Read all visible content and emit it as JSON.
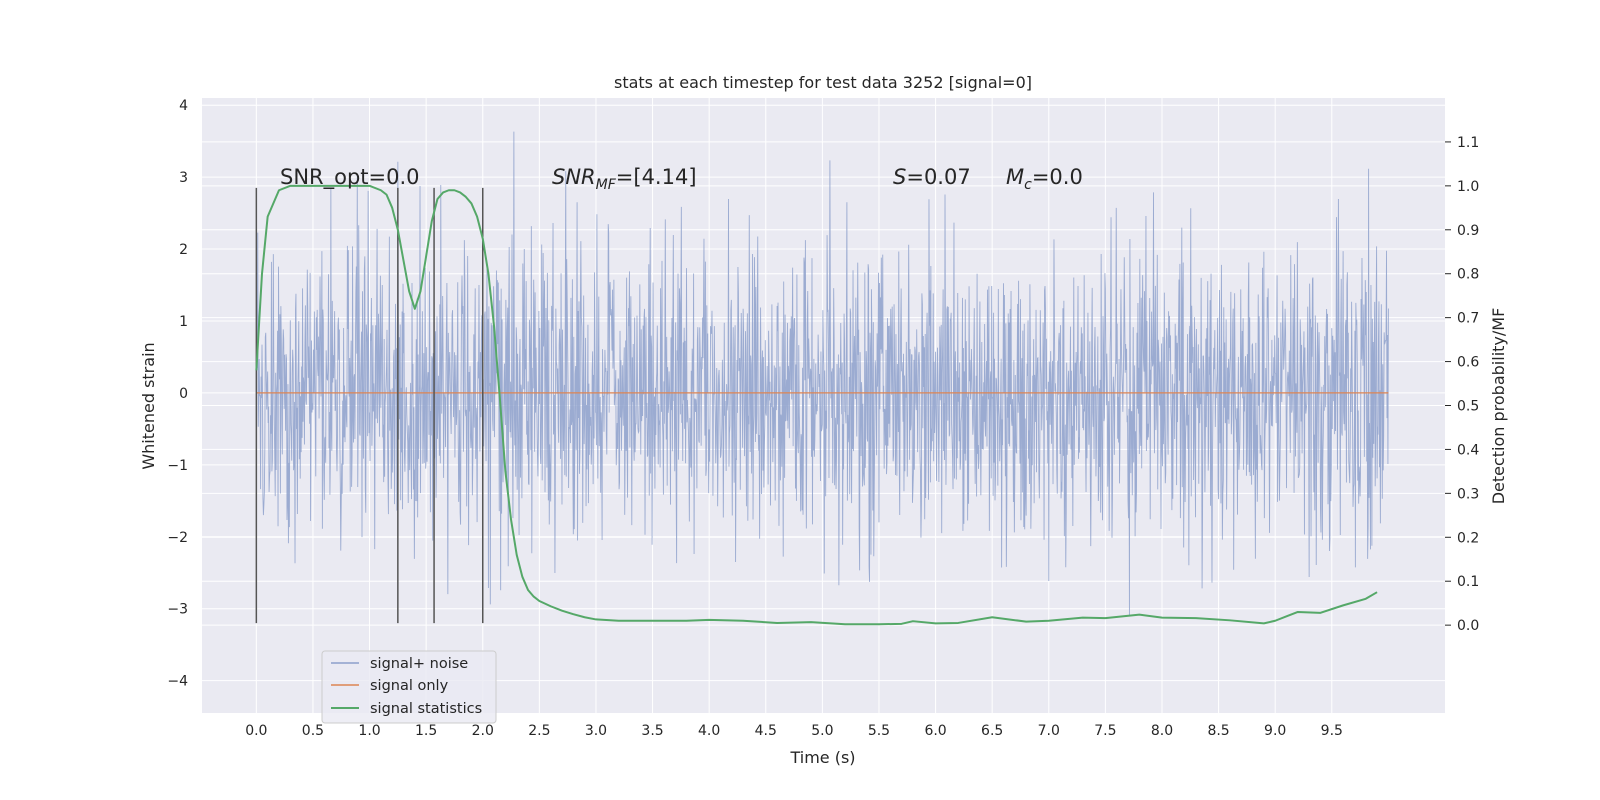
{
  "chart_data": {
    "type": "line",
    "title": "stats at each timestep for test data 3252 [signal=0]",
    "xlabel": "Time (s)",
    "ylabel": "Whitened strain",
    "ylabel_right": "Detection probability/MF",
    "xlim": [
      -0.48,
      10.5
    ],
    "ylim": [
      -4.45,
      4.1
    ],
    "ylim_right": [
      -0.2,
      1.2
    ],
    "x_ticks": [
      0.0,
      0.5,
      1.0,
      1.5,
      2.0,
      2.5,
      3.0,
      3.5,
      4.0,
      4.5,
      5.0,
      5.5,
      6.0,
      6.5,
      7.0,
      7.5,
      8.0,
      8.5,
      9.0,
      9.5
    ],
    "x_tick_labels": [
      "0.0",
      "0.5",
      "1.0",
      "1.5",
      "2.0",
      "2.5",
      "3.0",
      "3.5",
      "4.0",
      "4.5",
      "5.0",
      "5.5",
      "6.0",
      "6.5",
      "7.0",
      "7.5",
      "8.0",
      "8.5",
      "9.0",
      "9.5"
    ],
    "y_ticks": [
      -4,
      -3,
      -2,
      -1,
      0,
      1,
      2,
      3,
      4
    ],
    "y_tick_labels": [
      "−4",
      "−3",
      "−2",
      "−1",
      "0",
      "1",
      "2",
      "3",
      "4"
    ],
    "y_right_ticks": [
      0.0,
      0.1,
      0.2,
      0.3,
      0.4,
      0.5,
      0.6,
      0.7,
      0.8,
      0.9,
      1.0,
      1.1
    ],
    "y_right_tick_labels": [
      "0.0",
      "0.1",
      "0.2",
      "0.3",
      "0.4",
      "0.5",
      "0.6",
      "0.7",
      "0.8",
      "0.9",
      "1.0",
      "1.1"
    ],
    "grid": true,
    "legend_position": "lower-left",
    "annotations": {
      "snr_opt": "SNR_opt=0.0",
      "snr_mf_base": "SNR",
      "snr_mf_sub": "MF",
      "snr_mf_value": "=[4.14]",
      "s_symbol": "S",
      "s_value": "=0.07",
      "mc_symbol": "M",
      "mc_sub": "c",
      "mc_value": "=0.0"
    },
    "vertical_markers": {
      "x": [
        0.0,
        1.25,
        1.57,
        2.0
      ],
      "y_range": [
        -3.2,
        2.85
      ],
      "color": "#555555"
    },
    "series": [
      {
        "name": "signal+ noise",
        "color": "#8da0cb",
        "axis": "left",
        "envelope": {
          "x": [
            0.0,
            2.0,
            10.0
          ],
          "sd": 1.0,
          "x_range": [
            0.0,
            10.0
          ],
          "y_max": 3.7,
          "y_min": -4.05
        }
      },
      {
        "name": "signal only",
        "color": "#dd8452",
        "axis": "left",
        "x": [
          0.0,
          10.0
        ],
        "y": [
          0.0,
          0.0
        ]
      },
      {
        "name": "signal statistics",
        "color": "#55a868",
        "axis": "right",
        "x": [
          0.0,
          0.05,
          0.1,
          0.2,
          0.3,
          0.5,
          0.7,
          0.9,
          1.0,
          1.1,
          1.15,
          1.2,
          1.25,
          1.3,
          1.35,
          1.4,
          1.45,
          1.5,
          1.55,
          1.6,
          1.65,
          1.7,
          1.75,
          1.8,
          1.85,
          1.9,
          1.95,
          2.0,
          2.05,
          2.1,
          2.15,
          2.2,
          2.25,
          2.3,
          2.35,
          2.4,
          2.45,
          2.5,
          2.6,
          2.7,
          2.8,
          2.9,
          3.0,
          3.2,
          3.5,
          3.8,
          4.0,
          4.3,
          4.6,
          4.9,
          5.2,
          5.5,
          5.7,
          5.8,
          6.0,
          6.2,
          6.5,
          6.8,
          7.0,
          7.3,
          7.5,
          7.8,
          8.0,
          8.3,
          8.6,
          8.9,
          9.0,
          9.1,
          9.2,
          9.4,
          9.6,
          9.8,
          9.9
        ],
        "y": [
          0.58,
          0.8,
          0.93,
          0.99,
          1.0,
          1.0,
          1.0,
          1.0,
          1.0,
          0.99,
          0.98,
          0.95,
          0.9,
          0.83,
          0.76,
          0.72,
          0.76,
          0.84,
          0.92,
          0.97,
          0.985,
          0.99,
          0.99,
          0.985,
          0.975,
          0.96,
          0.93,
          0.88,
          0.8,
          0.68,
          0.52,
          0.35,
          0.24,
          0.16,
          0.11,
          0.08,
          0.065,
          0.055,
          0.043,
          0.033,
          0.025,
          0.018,
          0.013,
          0.01,
          0.01,
          0.01,
          0.012,
          0.01,
          0.005,
          0.007,
          0.002,
          0.002,
          0.003,
          0.009,
          0.004,
          0.005,
          0.018,
          0.008,
          0.01,
          0.017,
          0.016,
          0.024,
          0.017,
          0.016,
          0.011,
          0.004,
          0.01,
          0.02,
          0.03,
          0.028,
          0.045,
          0.06,
          0.075
        ]
      }
    ]
  }
}
